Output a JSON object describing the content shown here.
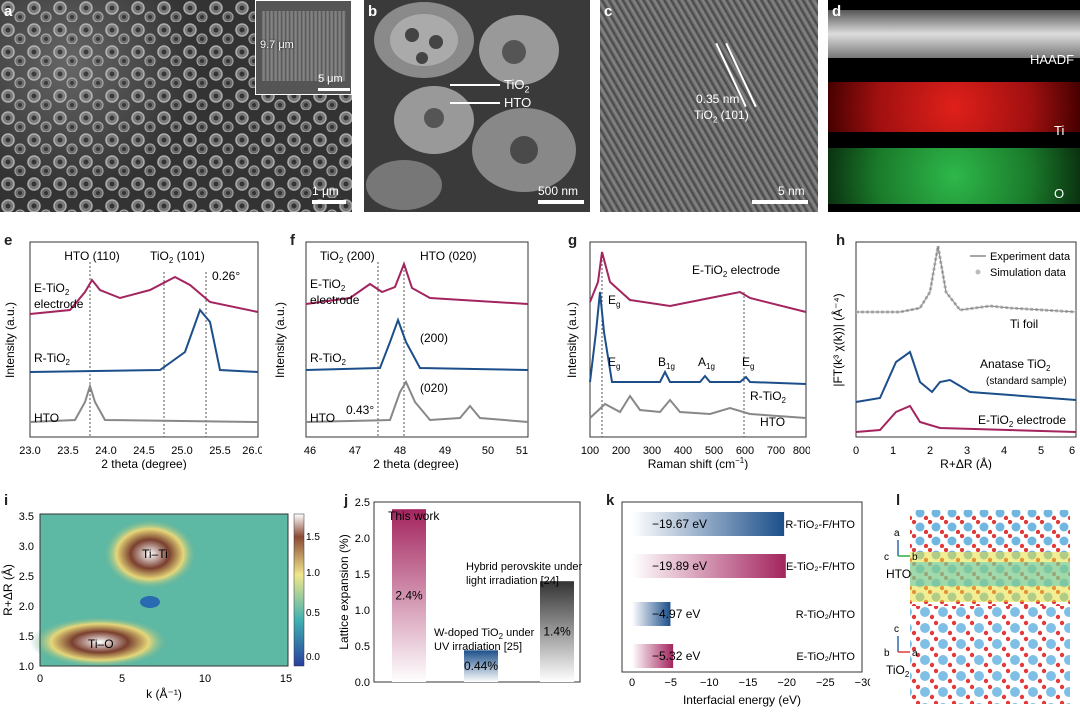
{
  "panels": {
    "a": "a",
    "b": "b",
    "c": "c",
    "d": "d",
    "e": "e",
    "f": "f",
    "g": "g",
    "h": "h",
    "i": "i",
    "j": "j",
    "k": "k",
    "l": "l"
  },
  "sem_a": {
    "inset_thickness": "9.7 μm",
    "inset_scale": "5 μm",
    "scale": "1 μm"
  },
  "sem_b": {
    "label1": "TiO",
    "label1_sub": "2",
    "label2": "HTO",
    "scale": "500 nm"
  },
  "tem_c": {
    "d_spacing": "0.35 nm",
    "plane": "TiO",
    "plane_sub": "2",
    "plane_suffix": " (101)",
    "scale": "5 nm"
  },
  "map_d": {
    "l1": "HAADF",
    "l2": "Ti",
    "l3": "O"
  },
  "xrd_e": {
    "xlabel": "2 theta (degree)",
    "ylabel": "Intensity (a.u.)",
    "peak1": "HTO (110)",
    "peak2": "TiO",
    "peak2_sub": "2",
    "peak2_suf": " (101)",
    "shift": "0.26°",
    "s1": "E-TiO",
    "s1b": "2",
    "s1c": "electrode",
    "s2": "R-TiO",
    "s2b": "2",
    "s3": "HTO",
    "ticks": [
      "23.0",
      "23.5",
      "24.0",
      "24.5",
      "25.0",
      "25.5",
      "26.0"
    ]
  },
  "xrd_f": {
    "xlabel": "2 theta (degree)",
    "ylabel": "Intensity (a.u.)",
    "peak1": "TiO",
    "peak1_sub": "2",
    "peak1_suf": " (200)",
    "peak2": "HTO (020)",
    "p200": "(200)",
    "p020": "(020)",
    "shift": "0.43°",
    "s1": "E-TiO",
    "s1b": "2",
    "s1c": "electrode",
    "s2": "R-TiO",
    "s2b": "2",
    "s3": "HTO",
    "ticks": [
      "46",
      "47",
      "48",
      "49",
      "50",
      "51"
    ]
  },
  "raman_g": {
    "xlabel": "Raman shift (cm",
    "xlabel_sup": "−1",
    "xlabel_end": ")",
    "ylabel": "Intensity (a.u.)",
    "s1": "E-TiO",
    "s1b": "2",
    "s1c": " electrode",
    "s2": "R-TiO",
    "s2b": "2",
    "s3": "HTO",
    "eg": "E",
    "eg_sub": "g",
    "b1g": "B",
    "b1g_sub": "1g",
    "a1g": "A",
    "a1g_sub": "1g",
    "ticks": [
      "100",
      "200",
      "300",
      "400",
      "500",
      "600",
      "700",
      "800"
    ]
  },
  "exafs_h": {
    "xlabel": "R+ΔR (Å)",
    "ylabel": "|FT(k³ χ(k))| (Å⁻⁴)",
    "leg1": "Experiment data",
    "leg2": "Simulation data",
    "s1": "Ti foil",
    "s2": "Anatase TiO",
    "s2b": "2",
    "s2c": "(standard sample)",
    "s3": "E-TiO",
    "s3b": "2",
    "s3c": " electrode",
    "ticks": [
      "0",
      "1",
      "2",
      "3",
      "4",
      "5",
      "6"
    ]
  },
  "wavelet_i": {
    "xlabel": "k (Å⁻¹)",
    "ylabel": "R+ΔR (Å)",
    "l1": "Ti–Ti",
    "l2": "Ti–O",
    "xticks": [
      "0",
      "5",
      "10",
      "15"
    ],
    "yticks": [
      "1.0",
      "1.5",
      "2.0",
      "2.5",
      "3.0",
      "3.5"
    ],
    "cticks": [
      "1.5",
      "1.0",
      "0.5",
      "0.0"
    ]
  },
  "chart_data": [
    {
      "type": "bar",
      "categories": [
        "This work",
        "W-doped TiO₂ under UV irradiation [25]",
        "Hybrid perovskite under light irradiation [24]"
      ],
      "values": [
        2.4,
        0.44,
        1.4
      ],
      "value_labels": [
        "2.4%",
        "0.44%",
        "1.4%"
      ],
      "ylabel": "Lattice expansion (%)",
      "ylim": [
        0,
        2.5
      ],
      "yticks": [
        "0.0",
        "0.5",
        "1.0",
        "1.5",
        "2.0",
        "2.5"
      ]
    },
    {
      "type": "bar",
      "categories": [
        "R-TiO₂-F/HTO",
        "E-TiO₂-F/HTO",
        "R-TiO₂/HTO",
        "E-TiO₂/HTO"
      ],
      "values": [
        -19.67,
        -19.89,
        -4.97,
        -5.32
      ],
      "value_labels": [
        "−19.67 eV",
        "−19.89 eV",
        "−4.97 eV",
        "−5.32 eV"
      ],
      "xlabel": "Interfacial energy (eV)",
      "xlim": [
        0,
        -30
      ],
      "xticks": [
        "0",
        "−5",
        "−10",
        "−15",
        "−20",
        "−25",
        "−30"
      ]
    }
  ],
  "bar_j": {
    "c1": "This work",
    "c2a": "W-doped TiO",
    "c2b": "2",
    "c2c": " under",
    "c2d": "UV irradiation [25]",
    "c3a": "Hybrid perovskite under",
    "c3b": "light irradiation [24]"
  },
  "struct_l": {
    "a": "a",
    "b": "b",
    "c": "c",
    "top": "HTO",
    "bot": "TiO",
    "bot_sub": "2"
  }
}
